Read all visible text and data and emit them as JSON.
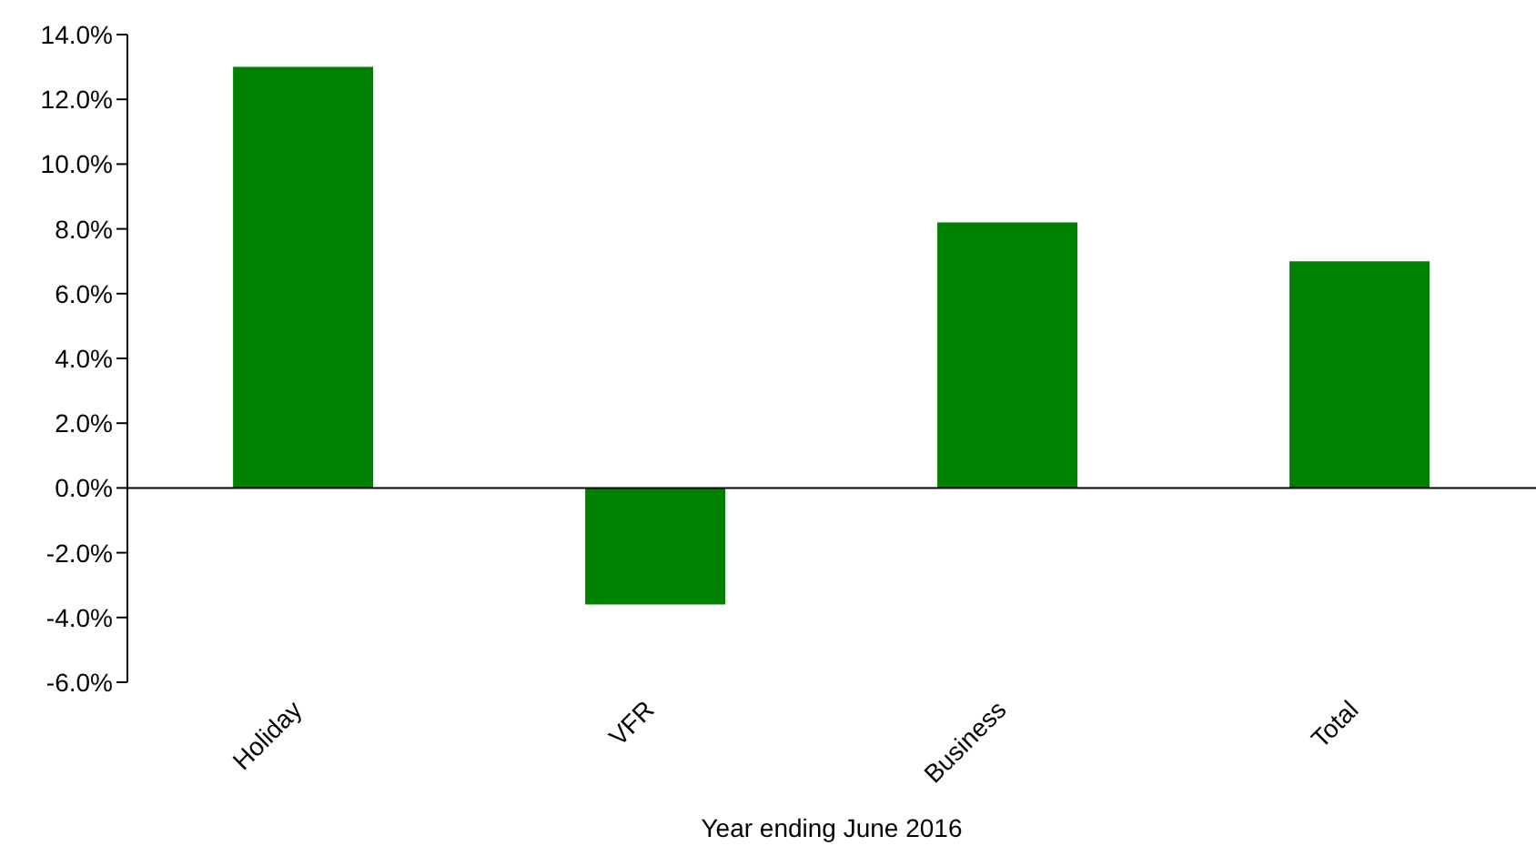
{
  "chart_data": {
    "type": "bar",
    "xlabel": "Year ending June 2016",
    "categories": [
      "Holiday",
      "VFR",
      "Business",
      "Total"
    ],
    "values": [
      13.0,
      -3.6,
      8.2,
      7.0
    ],
    "color": "#008000",
    "ylim": [
      -6,
      14
    ],
    "yticks": [
      {
        "value": -6,
        "label": "-6.0%"
      },
      {
        "value": -4,
        "label": "-4.0%"
      },
      {
        "value": -2,
        "label": "-2.0%"
      },
      {
        "value": 0,
        "label": "0.0%"
      },
      {
        "value": 2,
        "label": "2.0%"
      },
      {
        "value": 4,
        "label": "4.0%"
      },
      {
        "value": 6,
        "label": "6.0%"
      },
      {
        "value": 8,
        "label": "8.0%"
      },
      {
        "value": 10,
        "label": "10.0%"
      },
      {
        "value": 12,
        "label": "12.0%"
      },
      {
        "value": 14,
        "label": "14.0%"
      }
    ],
    "legend": false
  }
}
